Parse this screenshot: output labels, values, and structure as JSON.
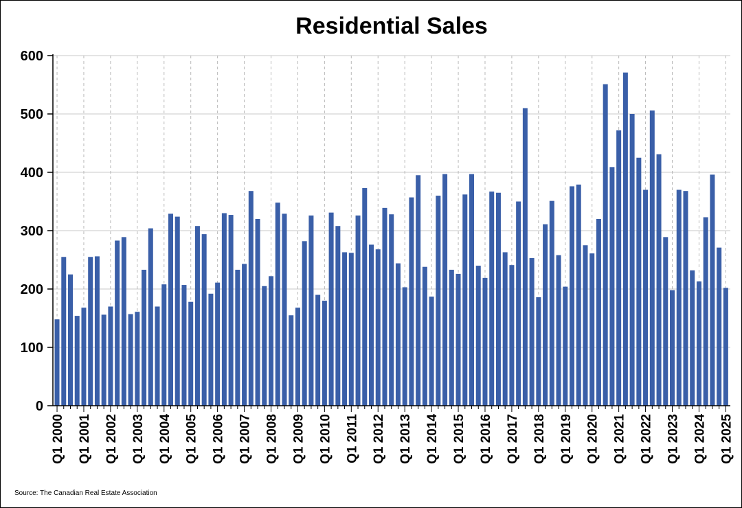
{
  "chart_data": {
    "type": "bar",
    "title": "Residential Sales",
    "xlabel": "",
    "ylabel": "",
    "ylim": [
      0,
      600
    ],
    "yticks": [
      0,
      100,
      200,
      300,
      400,
      500,
      600
    ],
    "grid": true,
    "bar_color": "#3a5fa8",
    "x_tick_labels": [
      "Q1 2000",
      "Q1 2001",
      "Q1 2002",
      "Q1 2003",
      "Q1 2004",
      "Q1 2005",
      "Q1 2006",
      "Q1 2007",
      "Q1 2008",
      "Q1 2009",
      "Q1 2010",
      "Q1 2011",
      "Q1 2012",
      "Q1 2013",
      "Q1 2014",
      "Q1 2015",
      "Q1 2016",
      "Q1 2017",
      "Q1 2018",
      "Q1 2019",
      "Q1 2020",
      "Q1 2021",
      "Q1 2022",
      "Q1 2023",
      "Q1 2024",
      "Q1 2025"
    ],
    "values": [
      148,
      255,
      225,
      154,
      168,
      255,
      256,
      156,
      170,
      283,
      289,
      157,
      161,
      233,
      304,
      170,
      208,
      329,
      324,
      207,
      178,
      308,
      294,
      192,
      211,
      330,
      327,
      233,
      243,
      368,
      320,
      205,
      222,
      348,
      329,
      155,
      168,
      282,
      326,
      190,
      180,
      331,
      308,
      263,
      262,
      326,
      373,
      276,
      268,
      339,
      328,
      244,
      203,
      357,
      395,
      238,
      187,
      360,
      397,
      233,
      226,
      362,
      397,
      240,
      219,
      367,
      365,
      263,
      241,
      350,
      510,
      253,
      186,
      311,
      351,
      258,
      204,
      376,
      379,
      275,
      261,
      320,
      551,
      409,
      472,
      571,
      500,
      425,
      370,
      506,
      431,
      289,
      198,
      370,
      368,
      232,
      213,
      323,
      396,
      271,
      202
    ]
  },
  "footer": {
    "source": "Source: The Canadian Real Estate Association"
  }
}
